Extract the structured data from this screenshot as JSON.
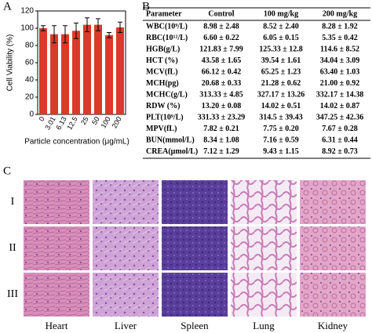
{
  "panel_labels": [
    "A",
    "B",
    "C"
  ],
  "chart_data": {
    "type": "bar",
    "ylabel": "Cell Viability (%)",
    "xlabel": "Particle concentration (μg/mL)",
    "categories": [
      "0",
      "3.01",
      "6.13",
      "12.5",
      "25",
      "50",
      "100",
      "200"
    ],
    "values": [
      100,
      93,
      93,
      97,
      104,
      104,
      92,
      101
    ],
    "errors": [
      3,
      10,
      10,
      9,
      8,
      7,
      3,
      6
    ],
    "color": "#d93a2b",
    "ylim": [
      0,
      120
    ],
    "yticks": [
      0,
      20,
      40,
      60,
      80,
      100,
      120
    ]
  },
  "table": {
    "columns": [
      "Parameter",
      "Control",
      "100 mg/kg",
      "200 mg/kg"
    ],
    "rows": [
      [
        "WBC(10⁹/L)",
        "8.98 ± 2.48",
        "8.52 ± 2.40",
        "8.28 ± 1.92"
      ],
      [
        "RBC(10¹²/L)",
        "6.60 ± 0.22",
        "6.05 ± 0.15",
        "5.35 ± 0.42"
      ],
      [
        "HGB(g/L)",
        "121.83 ± 7.99",
        "125.33 ± 12.8",
        "114.6 ± 8.52"
      ],
      [
        "HCT (%)",
        "43.58 ± 1.65",
        "39.54 ± 1.61",
        "34.04 ± 3.09"
      ],
      [
        "MCV(fL)",
        "66.12 ± 0.42",
        "65.25 ± 1.23",
        "63.40 ± 1.03"
      ],
      [
        "MCH(pg)",
        "20.68 ± 0.33",
        "21.28 ± 0.62",
        "21.00 ± 0.92"
      ],
      [
        "MCHC(g/L)",
        "313.33 ± 4.85",
        "327.17 ± 13.26",
        "332.17 ± 14.38"
      ],
      [
        "RDW (%)",
        "13.20 ± 0.08",
        "14.02 ± 0.51",
        "14.02 ± 0.87"
      ],
      [
        "PLT(10⁹/L)",
        "331.33 ± 23.29",
        "314.5 ± 39.43",
        "347.25 ± 42.36"
      ],
      [
        "MPV(fL)",
        "7.82 ± 0.21",
        "7.75 ± 0.20",
        "7.67 ± 0.28"
      ],
      [
        "BUN(mmol/L)",
        "8.34 ± 1.08",
        "7.16 ± 0.59",
        "6.31 ± 0.44"
      ],
      [
        "CREA(μmol/L)",
        "7.12 ± 1.29",
        "9.43 ± 1.15",
        "8.92 ± 0.73"
      ]
    ]
  },
  "histology": {
    "row_labels": [
      "I",
      "II",
      "III"
    ],
    "column_labels": [
      "Heart",
      "Liver",
      "Spleen",
      "Lung",
      "Kidney"
    ]
  }
}
